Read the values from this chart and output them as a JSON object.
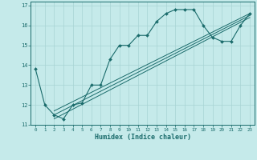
{
  "xlabel": "Humidex (Indice chaleur)",
  "ylabel": "",
  "xlim": [
    -0.5,
    23.5
  ],
  "ylim": [
    11,
    17.2
  ],
  "yticks": [
    11,
    12,
    13,
    14,
    15,
    16,
    17
  ],
  "xticks": [
    0,
    1,
    2,
    3,
    4,
    5,
    6,
    7,
    8,
    9,
    10,
    11,
    12,
    13,
    14,
    15,
    16,
    17,
    18,
    19,
    20,
    21,
    22,
    23
  ],
  "background_color": "#c5eaea",
  "grid_color": "#a8d4d4",
  "line_color": "#1a6b6b",
  "curve_x": [
    0,
    1,
    2,
    3,
    4,
    5,
    6,
    7,
    8,
    9,
    10,
    11,
    12,
    13,
    14,
    15,
    16,
    17,
    18,
    19,
    20,
    21,
    22,
    23
  ],
  "curve_y": [
    13.8,
    12.0,
    11.5,
    11.3,
    12.0,
    12.1,
    13.0,
    13.0,
    14.3,
    15.0,
    15.0,
    15.5,
    15.5,
    16.2,
    16.6,
    16.8,
    16.8,
    16.8,
    16.0,
    15.4,
    15.2,
    15.2,
    16.0,
    16.6
  ],
  "line1_x": [
    2,
    23
  ],
  "line1_y": [
    11.7,
    16.6
  ],
  "line2_x": [
    2,
    23
  ],
  "line2_y": [
    11.5,
    16.5
  ],
  "line3_x": [
    2,
    23
  ],
  "line3_y": [
    11.3,
    16.4
  ]
}
